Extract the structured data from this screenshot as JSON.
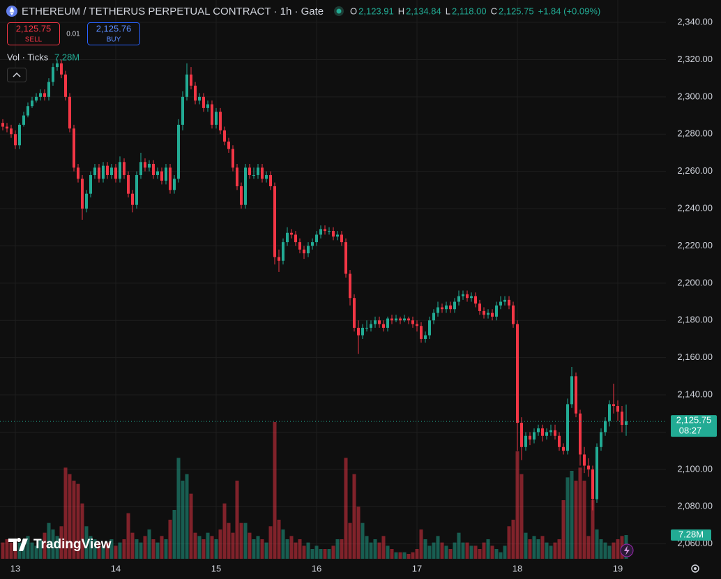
{
  "header": {
    "title": "ETHEREUM / TETHERUS PERPETUAL CONTRACT · 1h · Gate",
    "ohlc": [
      {
        "label": "O",
        "value": "2,123.91"
      },
      {
        "label": "H",
        "value": "2,134.84"
      },
      {
        "label": "L",
        "value": "2,118.00"
      },
      {
        "label": "C",
        "value": "2,125.75"
      }
    ],
    "change": "+1.84 (+0.09%)"
  },
  "trade": {
    "sell_price": "2,125.75",
    "sell": "SELL",
    "spread": "0.01",
    "buy_price": "2,125.76",
    "buy": "BUY"
  },
  "watermark": "TradingView",
  "chart_data": {
    "type": "candlestick",
    "up_color": "#22ab94",
    "down_color": "#f23645",
    "grid": true,
    "ylim": [
      2052,
      2352
    ],
    "yticks": [
      {
        "value": 2060,
        "label": "2,060.00"
      },
      {
        "value": 2080,
        "label": "2,080.00"
      },
      {
        "value": 2100,
        "label": "2,100.00"
      },
      {
        "value": 2120,
        "label": "2,120.00"
      },
      {
        "value": 2140,
        "label": "2,140.00"
      },
      {
        "value": 2160,
        "label": "2,160.00"
      },
      {
        "value": 2180,
        "label": "2,180.00"
      },
      {
        "value": 2200,
        "label": "2,200.00"
      },
      {
        "value": 2220,
        "label": "2,220.00"
      },
      {
        "value": 2240,
        "label": "2,240.00"
      },
      {
        "value": 2260,
        "label": "2,260.00"
      },
      {
        "value": 2280,
        "label": "2,280.00"
      },
      {
        "value": 2300,
        "label": "2,300.00"
      },
      {
        "value": 2320,
        "label": "2,320.00"
      },
      {
        "value": 2340,
        "label": "2,340.00"
      }
    ],
    "categories": [
      null,
      null,
      null,
      "13",
      null,
      null,
      null,
      null,
      null,
      null,
      null,
      null,
      null,
      null,
      null,
      null,
      null,
      null,
      null,
      null,
      null,
      null,
      null,
      null,
      null,
      null,
      null,
      "14",
      null,
      null,
      null,
      null,
      null,
      null,
      null,
      null,
      null,
      null,
      null,
      null,
      null,
      null,
      null,
      null,
      null,
      null,
      null,
      null,
      null,
      null,
      null,
      "15",
      null,
      null,
      null,
      null,
      null,
      null,
      null,
      null,
      null,
      null,
      null,
      null,
      null,
      null,
      null,
      null,
      null,
      null,
      null,
      null,
      null,
      null,
      null,
      "16",
      null,
      null,
      null,
      null,
      null,
      null,
      null,
      null,
      null,
      null,
      null,
      null,
      null,
      null,
      null,
      null,
      null,
      null,
      null,
      null,
      null,
      null,
      null,
      "17",
      null,
      null,
      null,
      null,
      null,
      null,
      null,
      null,
      null,
      null,
      null,
      null,
      null,
      null,
      null,
      null,
      null,
      null,
      null,
      null,
      null,
      null,
      null,
      "18",
      null,
      null,
      null,
      null,
      null,
      null,
      null,
      null,
      null,
      null,
      null,
      null,
      null,
      null,
      null,
      null,
      null,
      null,
      null,
      null,
      null,
      null,
      null,
      "19",
      null,
      null
    ],
    "open": [
      2286,
      2284,
      2283,
      2280,
      2274,
      2285,
      2290,
      2295,
      2298,
      2300,
      2302,
      2300,
      2308,
      2316,
      2318,
      2312,
      2300,
      2283,
      2262,
      2256,
      2240,
      2248,
      2258,
      2262,
      2256,
      2263,
      2258,
      2262,
      2256,
      2265,
      2258,
      2248,
      2242,
      2258,
      2265,
      2262,
      2264,
      2258,
      2260,
      2255,
      2262,
      2250,
      2256,
      2285,
      2300,
      2312,
      2306,
      2298,
      2300,
      2294,
      2296,
      2285,
      2292,
      2282,
      2276,
      2272,
      2262,
      2252,
      2242,
      2262,
      2258,
      2258,
      2262,
      2256,
      2258,
      2252,
      2214,
      2212,
      2222,
      2227,
      2226,
      2222,
      2218,
      2216,
      2220,
      2222,
      2226,
      2229,
      2228,
      2228,
      2225,
      2226,
      2222,
      2205,
      2192,
      2176,
      2172,
      2176,
      2176,
      2178,
      2180,
      2178,
      2176,
      2181,
      2180,
      2181,
      2180,
      2181,
      2180,
      2178,
      2177,
      2170,
      2172,
      2180,
      2184,
      2187,
      2186,
      2188,
      2186,
      2190,
      2193,
      2194,
      2192,
      2193,
      2189,
      2185,
      2183,
      2184,
      2182,
      2188,
      2190,
      2191,
      2188,
      2178,
      2125,
      2112,
      2118,
      2116,
      2120,
      2122,
      2118,
      2120,
      2121,
      2118,
      2112,
      2110,
      2135,
      2150,
      2130,
      2108,
      2102,
      2100,
      2084,
      2112,
      2120,
      2126,
      2135,
      2134,
      2131,
      2123.91
    ],
    "high": [
      2288,
      2286,
      2285,
      2282,
      2286,
      2292,
      2297,
      2300,
      2302,
      2304,
      2304,
      2310,
      2318,
      2320,
      2320,
      2314,
      2302,
      2285,
      2264,
      2258,
      2250,
      2260,
      2264,
      2264,
      2265,
      2265,
      2264,
      2264,
      2268,
      2267,
      2260,
      2250,
      2260,
      2270,
      2267,
      2266,
      2266,
      2262,
      2262,
      2264,
      2264,
      2258,
      2288,
      2303,
      2318,
      2316,
      2308,
      2302,
      2302,
      2298,
      2298,
      2294,
      2294,
      2284,
      2278,
      2274,
      2264,
      2254,
      2264,
      2264,
      2262,
      2264,
      2264,
      2260,
      2260,
      2254,
      2218,
      2224,
      2230,
      2229,
      2228,
      2224,
      2220,
      2222,
      2224,
      2228,
      2231,
      2231,
      2230,
      2230,
      2228,
      2228,
      2224,
      2207,
      2194,
      2180,
      2178,
      2180,
      2180,
      2182,
      2182,
      2180,
      2182,
      2183,
      2183,
      2182,
      2183,
      2182,
      2182,
      2180,
      2179,
      2174,
      2182,
      2186,
      2190,
      2189,
      2190,
      2190,
      2192,
      2196,
      2196,
      2196,
      2195,
      2195,
      2191,
      2187,
      2186,
      2186,
      2190,
      2193,
      2193,
      2193,
      2190,
      2180,
      2128,
      2120,
      2120,
      2122,
      2124,
      2124,
      2122,
      2124,
      2124,
      2120,
      2114,
      2138,
      2155,
      2152,
      2132,
      2112,
      2106,
      2102,
      2114,
      2122,
      2128,
      2137,
      2146,
      2137,
      2134,
      2134.84
    ],
    "low": [
      2282,
      2281,
      2278,
      2272,
      2272,
      2284,
      2289,
      2294,
      2297,
      2298,
      2298,
      2298,
      2306,
      2314,
      2310,
      2298,
      2281,
      2260,
      2254,
      2234,
      2238,
      2246,
      2256,
      2254,
      2254,
      2256,
      2256,
      2254,
      2254,
      2256,
      2246,
      2238,
      2240,
      2256,
      2260,
      2260,
      2256,
      2256,
      2253,
      2253,
      2248,
      2248,
      2254,
      2282,
      2298,
      2304,
      2296,
      2296,
      2292,
      2292,
      2283,
      2283,
      2280,
      2274,
      2270,
      2260,
      2250,
      2240,
      2240,
      2256,
      2256,
      2256,
      2254,
      2254,
      2250,
      2210,
      2206,
      2210,
      2220,
      2224,
      2220,
      2216,
      2213,
      2214,
      2218,
      2220,
      2224,
      2226,
      2226,
      2223,
      2223,
      2220,
      2203,
      2188,
      2174,
      2162,
      2170,
      2174,
      2174,
      2176,
      2176,
      2174,
      2174,
      2178,
      2179,
      2178,
      2179,
      2178,
      2176,
      2174,
      2168,
      2168,
      2170,
      2178,
      2182,
      2184,
      2184,
      2184,
      2184,
      2188,
      2191,
      2190,
      2190,
      2187,
      2183,
      2181,
      2181,
      2180,
      2180,
      2186,
      2188,
      2186,
      2176,
      2110,
      2105,
      2110,
      2113,
      2114,
      2118,
      2115,
      2116,
      2118,
      2116,
      2110,
      2108,
      2108,
      2133,
      2128,
      2102,
      2098,
      2096,
      2078,
      2082,
      2110,
      2118,
      2123,
      2130,
      2126,
      2120,
      2118.0
    ],
    "close": [
      2284,
      2283,
      2280,
      2274,
      2285,
      2290,
      2295,
      2298,
      2300,
      2302,
      2300,
      2308,
      2316,
      2318,
      2312,
      2300,
      2283,
      2262,
      2256,
      2240,
      2248,
      2258,
      2262,
      2256,
      2263,
      2258,
      2262,
      2256,
      2265,
      2258,
      2248,
      2242,
      2258,
      2265,
      2262,
      2264,
      2258,
      2260,
      2255,
      2262,
      2250,
      2256,
      2285,
      2300,
      2312,
      2306,
      2298,
      2300,
      2294,
      2296,
      2285,
      2292,
      2282,
      2276,
      2272,
      2262,
      2252,
      2242,
      2262,
      2258,
      2258,
      2262,
      2256,
      2258,
      2252,
      2214,
      2212,
      2222,
      2227,
      2226,
      2222,
      2218,
      2216,
      2220,
      2222,
      2226,
      2229,
      2228,
      2228,
      2225,
      2226,
      2222,
      2205,
      2192,
      2176,
      2172,
      2176,
      2176,
      2178,
      2180,
      2178,
      2176,
      2181,
      2180,
      2181,
      2180,
      2181,
      2180,
      2178,
      2177,
      2170,
      2172,
      2180,
      2184,
      2187,
      2186,
      2188,
      2186,
      2190,
      2193,
      2194,
      2192,
      2193,
      2189,
      2185,
      2183,
      2184,
      2182,
      2188,
      2190,
      2191,
      2188,
      2178,
      2125,
      2112,
      2118,
      2116,
      2120,
      2122,
      2118,
      2120,
      2121,
      2118,
      2112,
      2110,
      2135,
      2150,
      2130,
      2108,
      2102,
      2100,
      2084,
      2112,
      2120,
      2126,
      2135,
      2134,
      2131,
      2123.91,
      2125.75
    ],
    "volume": [
      5,
      6,
      5,
      6,
      5,
      6,
      7,
      5,
      4,
      6,
      8,
      11,
      9,
      7,
      10,
      28,
      26,
      24,
      23,
      17,
      10,
      7,
      6,
      5,
      4,
      5,
      6,
      4,
      5,
      6,
      14,
      8,
      6,
      5,
      7,
      9,
      6,
      5,
      7,
      6,
      12,
      15,
      31,
      24,
      26,
      20,
      8,
      7,
      6,
      8,
      7,
      6,
      9,
      17,
      11,
      8,
      24,
      11,
      11,
      8,
      6,
      7,
      6,
      5,
      10,
      42,
      12,
      9,
      6,
      7,
      5,
      6,
      4,
      5,
      3,
      4,
      3,
      3,
      3,
      4,
      6,
      6,
      31,
      11,
      26,
      16,
      11,
      7,
      5,
      6,
      5,
      7,
      4,
      3,
      2,
      2,
      2,
      1.5,
      2,
      3,
      9,
      6,
      4,
      5,
      7,
      5,
      4,
      3,
      5,
      8,
      5,
      5,
      4,
      4,
      3,
      5,
      6,
      4,
      3,
      2,
      4,
      10,
      12,
      33,
      26,
      8,
      6,
      7,
      6,
      7,
      5,
      4,
      5,
      6,
      18,
      25,
      27,
      24,
      28,
      24,
      7,
      18,
      9,
      6,
      5,
      4,
      5,
      6,
      7,
      7.28
    ],
    "volume_lim": [
      0,
      45
    ],
    "volume_legend": "Vol · Ticks",
    "volume_value_label": "7.28M",
    "last_price_label": "2,125.75",
    "countdown": "08:27"
  }
}
